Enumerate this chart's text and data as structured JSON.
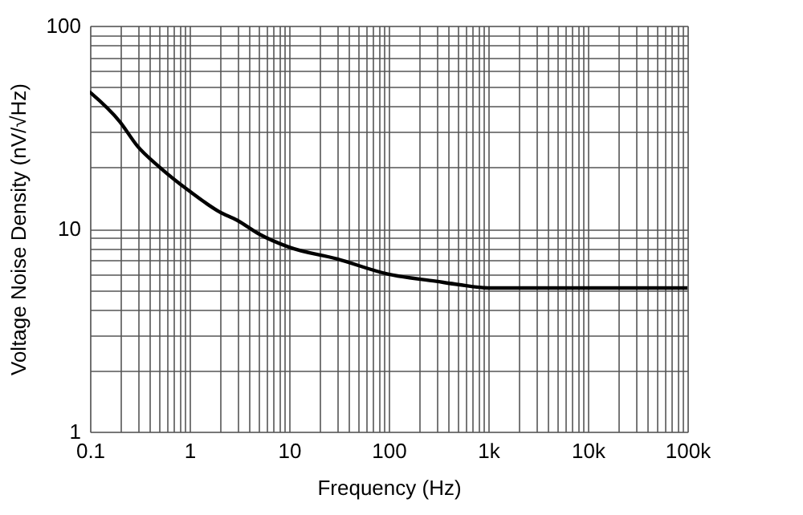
{
  "chart_data": {
    "type": "line",
    "xlabel": "Frequency (Hz)",
    "ylabel": "Voltage Noise Density (nV/√Hz)",
    "log": "xy",
    "grid": true,
    "line_style": "solid",
    "marker": "none",
    "x": [
      0.1,
      0.2,
      0.3,
      0.5,
      1,
      2,
      3,
      5,
      10,
      30,
      100,
      300,
      500,
      1000,
      10000,
      100000
    ],
    "series": [
      {
        "color": "#000000",
        "values": [
          47,
          33.6,
          25.5,
          20.1,
          15.3,
          12.1,
          11.0,
          9.4,
          8.1,
          7.1,
          5.96,
          5.5,
          5.3,
          5.1,
          5.1,
          5.1
        ]
      }
    ],
    "xlim": [
      0.1,
      100000
    ],
    "ylim": [
      1,
      100
    ],
    "xticks": [
      {
        "value": 0.1,
        "label": "0.1"
      },
      {
        "value": 0.2,
        "label": null
      },
      {
        "value": 0.3,
        "label": null
      },
      {
        "value": 0.4,
        "label": null
      },
      {
        "value": 0.5,
        "label": null
      },
      {
        "value": 0.6,
        "label": null
      },
      {
        "value": 0.7,
        "label": null
      },
      {
        "value": 0.8,
        "label": null
      },
      {
        "value": 0.9,
        "label": null
      },
      {
        "value": 1,
        "label": "1"
      },
      {
        "value": 2,
        "label": null
      },
      {
        "value": 3,
        "label": null
      },
      {
        "value": 4,
        "label": null
      },
      {
        "value": 5,
        "label": null
      },
      {
        "value": 6,
        "label": null
      },
      {
        "value": 7,
        "label": null
      },
      {
        "value": 8,
        "label": null
      },
      {
        "value": 9,
        "label": null
      },
      {
        "value": 10,
        "label": "10"
      },
      {
        "value": 20,
        "label": null
      },
      {
        "value": 30,
        "label": null
      },
      {
        "value": 40,
        "label": null
      },
      {
        "value": 50,
        "label": null
      },
      {
        "value": 60,
        "label": null
      },
      {
        "value": 70,
        "label": null
      },
      {
        "value": 80,
        "label": null
      },
      {
        "value": 90,
        "label": null
      },
      {
        "value": 100,
        "label": "100"
      },
      {
        "value": 200,
        "label": null
      },
      {
        "value": 300,
        "label": null
      },
      {
        "value": 400,
        "label": null
      },
      {
        "value": 500,
        "label": null
      },
      {
        "value": 600,
        "label": null
      },
      {
        "value": 700,
        "label": null
      },
      {
        "value": 800,
        "label": null
      },
      {
        "value": 900,
        "label": null
      },
      {
        "value": 1000,
        "label": "1k"
      },
      {
        "value": 2000,
        "label": null
      },
      {
        "value": 3000,
        "label": null
      },
      {
        "value": 4000,
        "label": null
      },
      {
        "value": 5000,
        "label": null
      },
      {
        "value": 6000,
        "label": null
      },
      {
        "value": 7000,
        "label": null
      },
      {
        "value": 8000,
        "label": null
      },
      {
        "value": 9000,
        "label": null
      },
      {
        "value": 10000,
        "label": "10k"
      },
      {
        "value": 20000,
        "label": null
      },
      {
        "value": 30000,
        "label": null
      },
      {
        "value": 40000,
        "label": null
      },
      {
        "value": 50000,
        "label": null
      },
      {
        "value": 60000,
        "label": null
      },
      {
        "value": 70000,
        "label": null
      },
      {
        "value": 80000,
        "label": null
      },
      {
        "value": 90000,
        "label": null
      },
      {
        "value": 100000,
        "label": "100k"
      }
    ],
    "yticks": [
      1,
      {
        "value": 2,
        "label": null
      },
      {
        "value": 3,
        "label": null
      },
      {
        "value": 4,
        "label": null
      },
      {
        "value": 5,
        "label": null
      },
      {
        "value": 6,
        "label": null
      },
      {
        "value": 7,
        "label": null
      },
      {
        "value": 8,
        "label": null
      },
      {
        "value": 9,
        "label": null
      },
      10,
      {
        "value": 20,
        "label": null
      },
      {
        "value": 30,
        "label": null
      },
      {
        "value": 40,
        "label": null
      },
      {
        "value": 50,
        "label": null
      },
      {
        "value": 60,
        "label": null
      },
      {
        "value": 70,
        "label": null
      },
      {
        "value": 80,
        "label": null
      },
      {
        "value": 90,
        "label": null
      },
      100
    ]
  }
}
